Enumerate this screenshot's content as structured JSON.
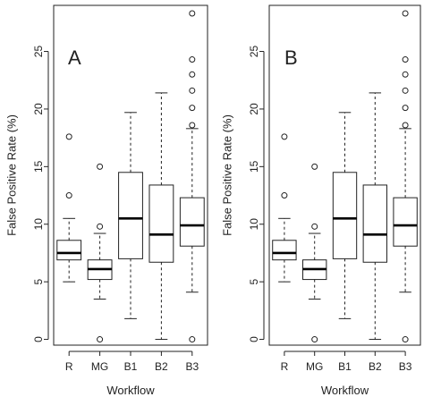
{
  "chart_data": [
    {
      "type": "boxplot",
      "panel_label": "A",
      "xlabel": "Workflow",
      "ylabel": "False Positive Rate (%)",
      "ylim": [
        -0.5,
        29
      ],
      "yticks": [
        0,
        5,
        10,
        15,
        20,
        25
      ],
      "categories": [
        "R",
        "MG",
        "B1",
        "B2",
        "B3"
      ],
      "boxes": [
        {
          "category": "R",
          "whisker_low": 5.0,
          "q1": 6.9,
          "median": 7.5,
          "q3": 8.6,
          "whisker_high": 10.5,
          "outliers": [
            12.5,
            17.6
          ]
        },
        {
          "category": "MG",
          "whisker_low": 3.5,
          "q1": 5.2,
          "median": 6.1,
          "q3": 6.9,
          "whisker_high": 9.2,
          "outliers": [
            0.0,
            9.8,
            15.0
          ]
        },
        {
          "category": "B1",
          "whisker_low": 1.8,
          "q1": 7.0,
          "median": 10.5,
          "q3": 14.5,
          "whisker_high": 19.7,
          "outliers": []
        },
        {
          "category": "B2",
          "whisker_low": 0.0,
          "q1": 6.7,
          "median": 9.1,
          "q3": 13.4,
          "whisker_high": 21.4,
          "outliers": []
        },
        {
          "category": "B3",
          "whisker_low": 4.1,
          "q1": 8.1,
          "median": 9.9,
          "q3": 12.3,
          "whisker_high": 18.3,
          "outliers": [
            0.0,
            18.6,
            20.1,
            21.6,
            23.0,
            24.3,
            28.3
          ]
        }
      ]
    },
    {
      "type": "boxplot",
      "panel_label": "B",
      "xlabel": "Workflow",
      "ylabel": "False Positive Rate (%)",
      "ylim": [
        -0.5,
        29
      ],
      "yticks": [
        0,
        5,
        10,
        15,
        20,
        25
      ],
      "categories": [
        "R",
        "MG",
        "B1",
        "B2",
        "B3"
      ],
      "boxes": [
        {
          "category": "R",
          "whisker_low": 5.0,
          "q1": 6.9,
          "median": 7.5,
          "q3": 8.6,
          "whisker_high": 10.5,
          "outliers": [
            12.5,
            17.6
          ]
        },
        {
          "category": "MG",
          "whisker_low": 3.5,
          "q1": 5.2,
          "median": 6.1,
          "q3": 6.9,
          "whisker_high": 9.2,
          "outliers": [
            0.0,
            9.8,
            15.0
          ]
        },
        {
          "category": "B1",
          "whisker_low": 1.8,
          "q1": 7.0,
          "median": 10.5,
          "q3": 14.5,
          "whisker_high": 19.7,
          "outliers": []
        },
        {
          "category": "B2",
          "whisker_low": 0.0,
          "q1": 6.7,
          "median": 9.1,
          "q3": 13.4,
          "whisker_high": 21.4,
          "outliers": []
        },
        {
          "category": "B3",
          "whisker_low": 4.1,
          "q1": 8.1,
          "median": 9.9,
          "q3": 12.3,
          "whisker_high": 18.3,
          "outliers": [
            0.0,
            18.6,
            20.1,
            21.6,
            23.0,
            24.3,
            28.3
          ]
        }
      ]
    }
  ]
}
